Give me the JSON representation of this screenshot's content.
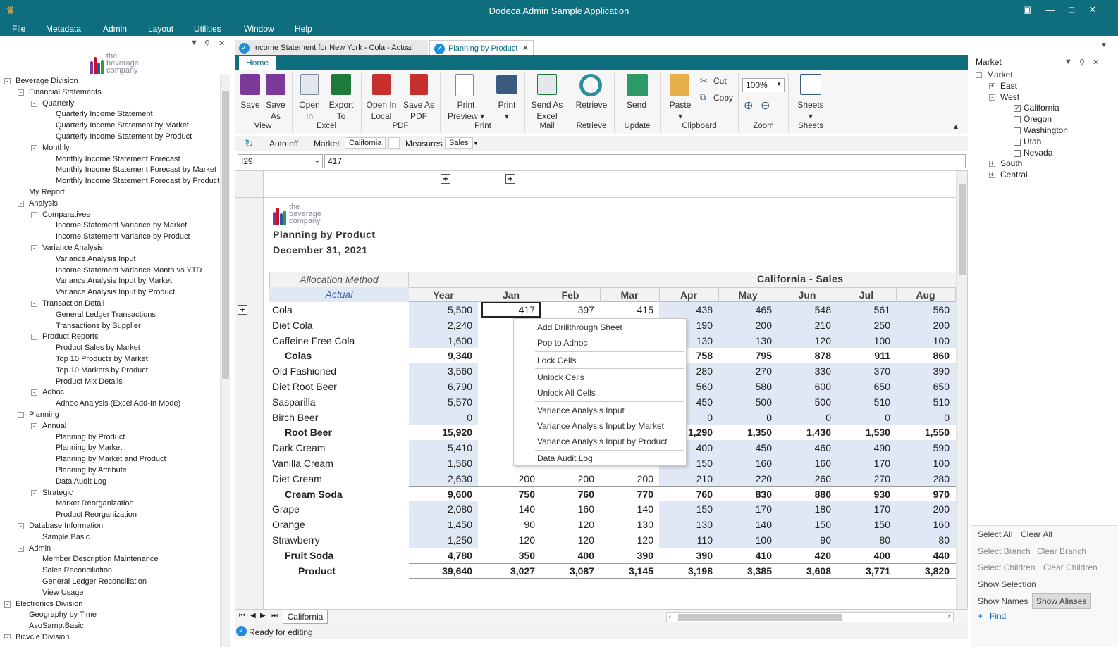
{
  "app": {
    "title": "Dodeca Admin Sample Application"
  },
  "menu": [
    "File",
    "Metadata",
    "Admin",
    "Layout",
    "Utilities",
    "Window",
    "Help"
  ],
  "logo": {
    "line1": "the",
    "line2": "beverage",
    "line3": "company"
  },
  "tree": [
    {
      "label": "Beverage Division",
      "d": 0,
      "exp": "-"
    },
    {
      "label": "Financial Statements",
      "d": 1,
      "exp": "-"
    },
    {
      "label": "Quarterly",
      "d": 2,
      "exp": "-"
    },
    {
      "label": "Quarterly Income Statement",
      "d": 3
    },
    {
      "label": "Quarterly Income Statement by Market",
      "d": 3
    },
    {
      "label": "Quarterly Income Statement by Product",
      "d": 3
    },
    {
      "label": "Monthly",
      "d": 2,
      "exp": "-"
    },
    {
      "label": "Monthly Income Statement Forecast",
      "d": 3
    },
    {
      "label": "Monthly Income Statement Forecast by Market",
      "d": 3
    },
    {
      "label": "Monthly Income Statement Forecast by Product",
      "d": 3
    },
    {
      "label": "My Report",
      "d": 1
    },
    {
      "label": "Analysis",
      "d": 1,
      "exp": "-"
    },
    {
      "label": "Comparatives",
      "d": 2,
      "exp": "-"
    },
    {
      "label": "Income Statement Variance by Market",
      "d": 3
    },
    {
      "label": "Income Statement Variance by Product",
      "d": 3
    },
    {
      "label": "Variance Analysis",
      "d": 2,
      "exp": "-"
    },
    {
      "label": "Variance Analysis Input",
      "d": 3
    },
    {
      "label": "Income Statement Variance Month vs YTD",
      "d": 3
    },
    {
      "label": "Variance Analysis Input by Market",
      "d": 3
    },
    {
      "label": "Variance Analysis Input by Product",
      "d": 3
    },
    {
      "label": "Transaction Detail",
      "d": 2,
      "exp": "-"
    },
    {
      "label": "General Ledger Transactions",
      "d": 3
    },
    {
      "label": "Transactions by Supplier",
      "d": 3
    },
    {
      "label": "Product Reports",
      "d": 2,
      "exp": "-"
    },
    {
      "label": "Product Sales by Market",
      "d": 3
    },
    {
      "label": "Top 10 Products by Market",
      "d": 3
    },
    {
      "label": "Top 10 Markets by Product",
      "d": 3
    },
    {
      "label": "Product Mix Details",
      "d": 3
    },
    {
      "label": "Adhoc",
      "d": 2,
      "exp": "-"
    },
    {
      "label": "Adhoc Analysis (Excel Add-In Mode)",
      "d": 3
    },
    {
      "label": "Planning",
      "d": 1,
      "exp": "-"
    },
    {
      "label": "Annual",
      "d": 2,
      "exp": "-"
    },
    {
      "label": "Planning by Product",
      "d": 3
    },
    {
      "label": "Planning by Market",
      "d": 3
    },
    {
      "label": "Planning by Market and Product",
      "d": 3
    },
    {
      "label": "Planning by Attribute",
      "d": 3
    },
    {
      "label": "Data Audit Log",
      "d": 3
    },
    {
      "label": "Strategic",
      "d": 2,
      "exp": "-"
    },
    {
      "label": "Market Reorganization",
      "d": 3
    },
    {
      "label": "Product Reorganization",
      "d": 3
    },
    {
      "label": "Database Information",
      "d": 1,
      "exp": "-"
    },
    {
      "label": "Sample.Basic",
      "d": 2
    },
    {
      "label": "Admin",
      "d": 1,
      "exp": "-"
    },
    {
      "label": "Member Description Maintenance",
      "d": 2
    },
    {
      "label": "Sales Reconciliation",
      "d": 2
    },
    {
      "label": "General Ledger Reconciliation",
      "d": 2
    },
    {
      "label": "View Usage",
      "d": 2
    },
    {
      "label": "Electronics Division",
      "d": 0,
      "exp": "-"
    },
    {
      "label": "Geography by Time",
      "d": 1
    },
    {
      "label": "AsoSamp.Basic",
      "d": 1
    },
    {
      "label": "Bicycle Division",
      "d": 0,
      "exp": "-"
    }
  ],
  "tabs": {
    "tab1": "Income Statement for New York - Cola - Actual",
    "tab2": "Planning by Product",
    "home": "Home"
  },
  "ribbon": {
    "save": "Save",
    "saveas1": "Save",
    "saveas2": "As",
    "open1": "Open",
    "open2": "In",
    "export1": "Export",
    "export2": "To",
    "openlocal1": "Open In",
    "openlocal2": "Local",
    "saveaspdf1": "Save As",
    "saveaspdf2": "PDF",
    "printprev1": "Print",
    "printprev2": "Preview",
    "print": "Print",
    "sendexcel1": "Send As",
    "sendexcel2": "Excel",
    "retrieve": "Retrieve",
    "send": "Send",
    "paste": "Paste",
    "cut": "Cut",
    "copy": "Copy",
    "zoom": "100%",
    "sheets": "Sheets",
    "groups": {
      "view": "View",
      "excel": "Excel",
      "pdf": "PDF",
      "print": "Print",
      "mail": "Mail",
      "retrieve": "Retrieve",
      "update": "Update",
      "clipboard": "Clipboard",
      "zoom": "Zoom",
      "sheets": "Sheets"
    }
  },
  "pov": {
    "auto": "Auto off",
    "market_label": "Market",
    "market_val": "California",
    "measures_label": "Measures",
    "measures_val": "Sales"
  },
  "formula": {
    "cell": "I29",
    "value": "417"
  },
  "report": {
    "title": "Planning by Product",
    "date": "December 31, 2021",
    "alloc": "Allocation Method",
    "scenario": "Actual",
    "header": "California  -  Sales"
  },
  "columns": [
    "Year",
    "Jan",
    "Feb",
    "Mar",
    "Apr",
    "May",
    "Jun",
    "Jul",
    "Aug"
  ],
  "rows": [
    {
      "label": "Cola",
      "vals": [
        "5,500",
        "417",
        "397",
        "415",
        "438",
        "465",
        "548",
        "561",
        "560"
      ]
    },
    {
      "label": "Diet Cola",
      "vals": [
        "2,240",
        "",
        "",
        "",
        "190",
        "200",
        "210",
        "250",
        "200"
      ]
    },
    {
      "label": "Caffeine Free Cola",
      "vals": [
        "1,600",
        "",
        "",
        "",
        "130",
        "130",
        "120",
        "100",
        "100"
      ]
    },
    {
      "label": "Colas",
      "total": true,
      "vals": [
        "9,340",
        "",
        "",
        "",
        "758",
        "795",
        "878",
        "911",
        "860"
      ]
    },
    {
      "label": "Old Fashioned",
      "vals": [
        "3,560",
        "",
        "",
        "",
        "280",
        "270",
        "330",
        "370",
        "390"
      ]
    },
    {
      "label": "Diet Root Beer",
      "vals": [
        "6,790",
        "",
        "",
        "",
        "560",
        "580",
        "600",
        "650",
        "650"
      ]
    },
    {
      "label": "Sasparilla",
      "vals": [
        "5,570",
        "",
        "",
        "",
        "450",
        "500",
        "500",
        "510",
        "510"
      ]
    },
    {
      "label": "Birch Beer",
      "vals": [
        "0",
        "",
        "",
        "",
        "0",
        "0",
        "0",
        "0",
        "0"
      ]
    },
    {
      "label": "Root Beer",
      "total": true,
      "vals": [
        "15,920",
        "1",
        "",
        "",
        "1,290",
        "1,350",
        "1,430",
        "1,530",
        "1,550"
      ]
    },
    {
      "label": "Dark Cream",
      "vals": [
        "5,410",
        "",
        "",
        "",
        "400",
        "450",
        "460",
        "490",
        "590"
      ]
    },
    {
      "label": "Vanilla Cream",
      "vals": [
        "1,560",
        "",
        "",
        "",
        "150",
        "160",
        "160",
        "170",
        "100"
      ]
    },
    {
      "label": "Diet Cream",
      "vals": [
        "2,630",
        "200",
        "200",
        "200",
        "210",
        "220",
        "260",
        "270",
        "280"
      ]
    },
    {
      "label": "Cream Soda",
      "total": true,
      "vals": [
        "9,600",
        "750",
        "760",
        "770",
        "760",
        "830",
        "880",
        "930",
        "970"
      ]
    },
    {
      "label": "Grape",
      "vals": [
        "2,080",
        "140",
        "160",
        "140",
        "150",
        "170",
        "180",
        "170",
        "200"
      ]
    },
    {
      "label": "Orange",
      "vals": [
        "1,450",
        "90",
        "120",
        "130",
        "130",
        "140",
        "150",
        "150",
        "160"
      ]
    },
    {
      "label": "Strawberry",
      "vals": [
        "1,250",
        "120",
        "120",
        "120",
        "110",
        "100",
        "90",
        "80",
        "80"
      ]
    },
    {
      "label": "Fruit Soda",
      "total": true,
      "vals": [
        "4,780",
        "350",
        "400",
        "390",
        "390",
        "410",
        "420",
        "400",
        "440"
      ]
    },
    {
      "label": "Product",
      "total": true,
      "grand": true,
      "vals": [
        "39,640",
        "3,027",
        "3,087",
        "3,145",
        "3,198",
        "3,385",
        "3,608",
        "3,771",
        "3,820"
      ]
    }
  ],
  "context_menu": [
    "Add Drillthrough Sheet",
    "Pop to Adhoc",
    "Lock Cells",
    "Unlock Cells",
    "Unlock All Cells",
    "Variance Analysis Input",
    "Variance Analysis Input by Market",
    "Variance Analysis Input by Product",
    "Data Audit Log"
  ],
  "sheet_tab": "California",
  "status": "Ready for editing",
  "market": {
    "title": "Market",
    "nodes": [
      {
        "label": "Market",
        "d": 0,
        "exp": "-"
      },
      {
        "label": "East",
        "d": 1,
        "exp": "+"
      },
      {
        "label": "West",
        "d": 1,
        "exp": "-"
      },
      {
        "label": "California",
        "d": 2,
        "chk": true
      },
      {
        "label": "Oregon",
        "d": 2,
        "chk": false
      },
      {
        "label": "Washington",
        "d": 2,
        "chk": false
      },
      {
        "label": "Utah",
        "d": 2,
        "chk": false
      },
      {
        "label": "Nevada",
        "d": 2,
        "chk": false
      },
      {
        "label": "South",
        "d": 1,
        "exp": "+"
      },
      {
        "label": "Central",
        "d": 1,
        "exp": "+"
      }
    ],
    "select_all": "Select All",
    "clear_all": "Clear All",
    "select_branch": "Select Branch",
    "clear_branch": "Clear Branch",
    "select_children": "Select Children",
    "clear_children": "Clear Children",
    "show_selection": "Show Selection",
    "show_names": "Show Names",
    "show_aliases": "Show Aliases",
    "find": "Find"
  },
  "colors": {
    "teal": "#0e6e7e",
    "band": "#dfe8f4",
    "purple": "#7b3a9a"
  }
}
